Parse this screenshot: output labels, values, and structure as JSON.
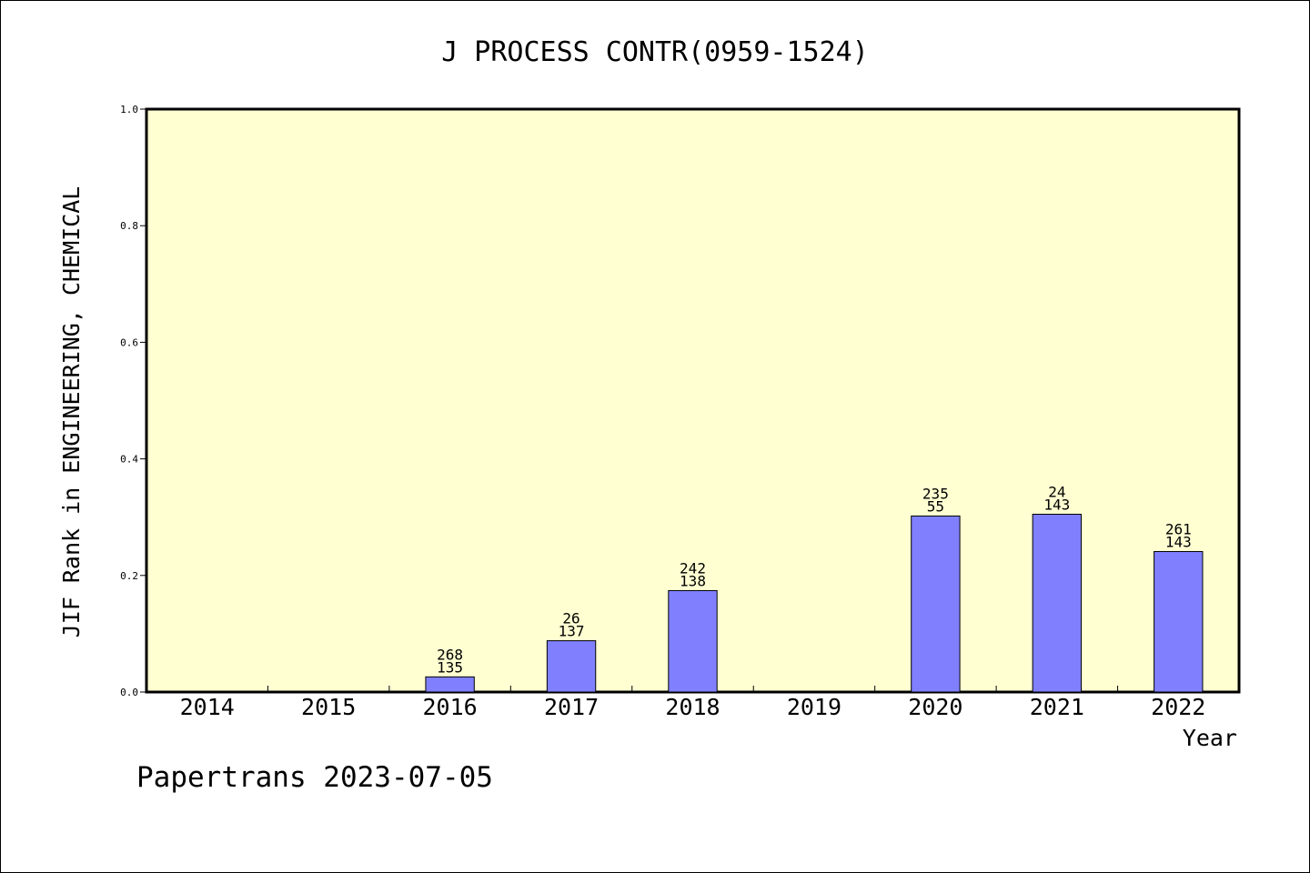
{
  "chart_data": {
    "type": "bar",
    "title": "J PROCESS CONTR(0959-1524)",
    "xlabel": "Year",
    "ylabel": "JIF Rank in ENGINEERING, CHEMICAL",
    "ylim": [
      0,
      1.0
    ],
    "yticks": [
      "0.0",
      "0.2",
      "0.4",
      "0.6",
      "0.8",
      "1.0"
    ],
    "grid": false,
    "legend": "none",
    "categories": [
      "2014",
      "2015",
      "2016",
      "2017",
      "2018",
      "2019",
      "2020",
      "2021",
      "2022"
    ],
    "values": [
      null,
      null,
      0.026,
      0.088,
      0.174,
      null,
      0.302,
      0.305,
      0.241
    ],
    "label_top": [
      null,
      null,
      "268",
      "26",
      "242",
      null,
      "235",
      "24",
      "261"
    ],
    "label_bottom": [
      null,
      null,
      "135",
      "137",
      "138",
      null,
      "55",
      "143",
      "143"
    ],
    "colors": {
      "plot_background": "#ffffd2",
      "bar_fill": "#8080ff",
      "axis": "#000000"
    }
  },
  "footer": {
    "credit": "Papertrans 2023-07-05"
  }
}
